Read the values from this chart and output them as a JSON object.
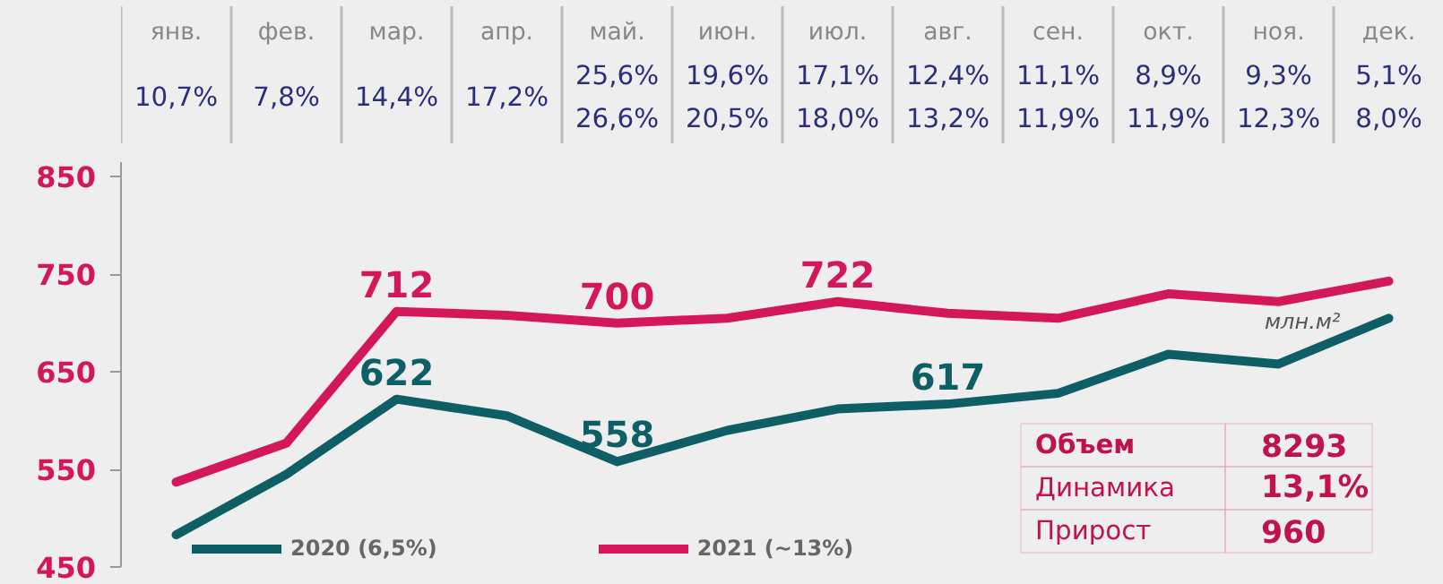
{
  "chart_data": [
    {
      "type": "other",
      "categories": [
        "янв.",
        "фев.",
        "мар.",
        "апр.",
        "май.",
        "июн.",
        "июл.",
        "авг.",
        "сен.",
        "окт.",
        "ноя.",
        "дек."
      ],
      "series": [
        {
          "color": "#2b2f7a",
          "values": [
            10.7,
            7.8,
            14.4,
            17.2,
            25.6,
            19.6,
            17.1,
            12.4,
            11.1,
            8.9,
            9.3,
            5.1
          ],
          "value_labels": [
            "10,7%",
            "7,8%",
            "14,4%",
            "17,2%",
            "25,6%",
            "19,6%",
            "17,1%",
            "12,4%",
            "11,1%",
            "8,9%",
            "9,3%",
            "5,1%"
          ]
        },
        {
          "color": "#2b2f7a",
          "values": [
            null,
            null,
            null,
            null,
            26.6,
            20.5,
            18.0,
            13.2,
            11.9,
            11.9,
            12.3,
            8.0
          ],
          "value_labels": [
            null,
            null,
            null,
            null,
            "26,6%",
            "20,5%",
            "18,0%",
            "13,2%",
            "11,9%",
            "11,9%",
            "12,3%",
            "8,0%"
          ]
        }
      ]
    },
    {
      "type": "line",
      "categories": [
        null,
        null,
        null,
        null,
        null,
        null,
        null,
        null,
        null,
        null,
        null,
        null
      ],
      "ylim": [
        450,
        865
      ],
      "yticks": [
        450,
        550,
        650,
        750,
        850
      ],
      "grid": false,
      "legend": "bottom",
      "line_style": "solid",
      "marker": "none",
      "series": [
        {
          "name": "2020 (6,5%)",
          "color": "#0e5e66",
          "values": [
            483,
            545,
            622,
            605,
            558,
            590,
            612,
            617,
            628,
            668,
            658,
            705
          ],
          "value_labels": [
            null,
            null,
            "622",
            null,
            "558",
            null,
            null,
            "617",
            null,
            null,
            null,
            null
          ]
        },
        {
          "name": "2021 (~13%)",
          "color": "#d4165a",
          "values": [
            537,
            577,
            712,
            708,
            700,
            705,
            722,
            710,
            705,
            730,
            722,
            743
          ],
          "value_labels": [
            null,
            null,
            "712",
            null,
            "700",
            null,
            "722",
            null,
            null,
            null,
            null,
            null
          ]
        }
      ],
      "annotations": [
        "млн.м²",
        "Объем",
        "8293",
        "Динамика",
        "13,1%",
        "Прирост",
        "960"
      ]
    }
  ]
}
